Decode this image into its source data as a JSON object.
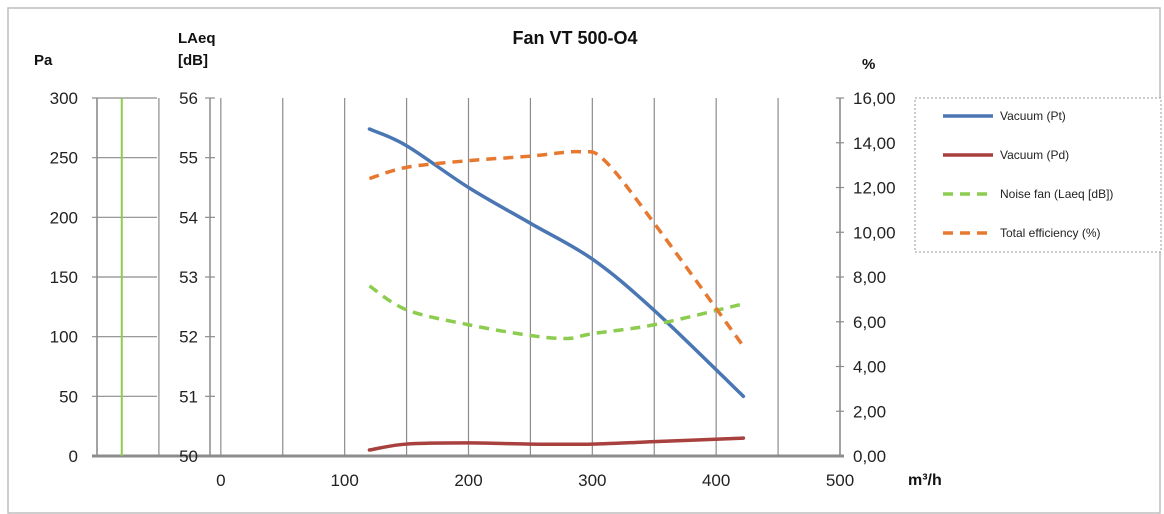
{
  "chart_data": {
    "type": "line",
    "title": "Fan VT 500-O4",
    "x_axis": {
      "unit_label": "m³/h",
      "range": [
        -100,
        500
      ],
      "ticks": [
        0,
        100,
        200,
        300,
        400,
        500
      ],
      "tick_labels": [
        "0",
        "100",
        "200",
        "300",
        "400",
        "500"
      ]
    },
    "y_axes": {
      "pa": {
        "title": "Pa",
        "range": [
          0,
          300
        ],
        "ticks": [
          0,
          50,
          100,
          150,
          200,
          250,
          300
        ],
        "tick_labels": [
          "0",
          "50",
          "100",
          "150",
          "200",
          "250",
          "300"
        ]
      },
      "laeq": {
        "title_line1": "LAeq",
        "title_line2": "[dB]",
        "range": [
          50,
          56
        ],
        "ticks": [
          50,
          51,
          52,
          53,
          54,
          55,
          56
        ],
        "tick_labels": [
          "50",
          "51",
          "52",
          "53",
          "54",
          "55",
          "56"
        ]
      },
      "percent": {
        "title": "%",
        "range": [
          0,
          16
        ],
        "ticks": [
          0,
          2,
          4,
          6,
          8,
          10,
          12,
          14,
          16
        ],
        "tick_labels": [
          "0,00",
          "2,00",
          "4,00",
          "6,00",
          "8,00",
          "10,00",
          "12,00",
          "14,00",
          "16,00"
        ]
      }
    },
    "grid": true,
    "legend_position": "right",
    "series": [
      {
        "name": "Vacuum (Pt)",
        "axis": "pa",
        "color": "#4a77b4",
        "dash": "solid",
        "x": [
          120,
          150,
          200,
          250,
          300,
          350,
          422
        ],
        "y": [
          274,
          260,
          225,
          195,
          165,
          122,
          50
        ]
      },
      {
        "name": "Vacuum (Pd)",
        "axis": "pa",
        "color": "#a8403e",
        "dash": "solid",
        "x": [
          120,
          150,
          200,
          250,
          300,
          350,
          422
        ],
        "y": [
          5,
          10,
          11,
          10,
          10,
          12,
          15
        ]
      },
      {
        "name": "Noise fan (Laeq [dB])",
        "axis": "laeq",
        "color": "#8ccc4e",
        "dash": "dashed",
        "x": [
          120,
          150,
          200,
          250,
          280,
          300,
          350,
          422
        ],
        "y": [
          52.85,
          52.45,
          52.2,
          52.02,
          51.97,
          52.05,
          52.2,
          52.55
        ]
      },
      {
        "name": "Total efficiency (%)",
        "axis": "percent",
        "color": "#e6782f",
        "dash": "dashed",
        "x": [
          120,
          150,
          200,
          250,
          290,
          310,
          350,
          422
        ],
        "y": [
          12.4,
          12.9,
          13.2,
          13.4,
          13.6,
          13.2,
          10.4,
          4.9
        ]
      }
    ],
    "vertical_marker": {
      "x": -80,
      "color": "#8ccc4e"
    }
  }
}
